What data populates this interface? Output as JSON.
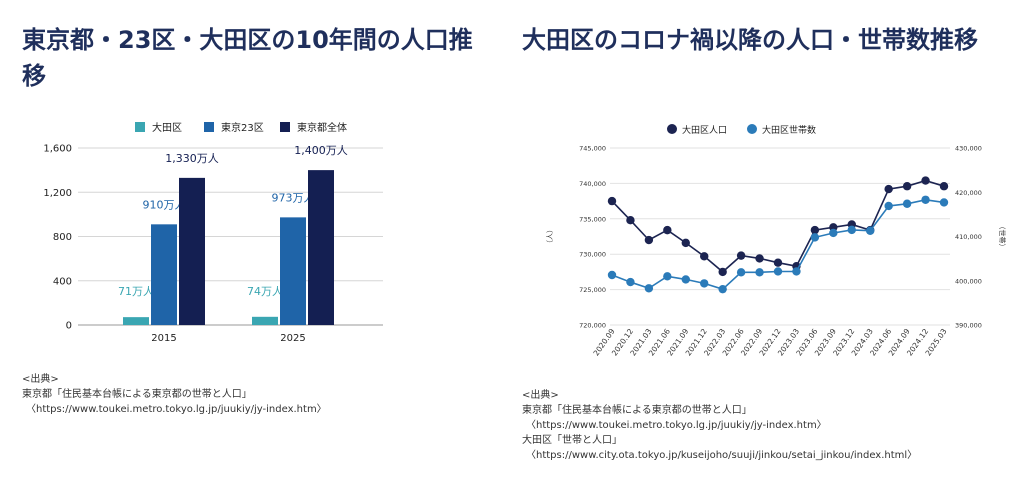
{
  "left": {
    "title": "東京都・23区・大田区の10年間の人口推移",
    "source_heading": "<出典>",
    "source_lines": [
      "東京都「住民基本台帳による東京都の世帯と人口」",
      "〈https://www.toukei.metro.tokyo.lg.jp/juukiy/jy-index.htm〉"
    ]
  },
  "right": {
    "title": "大田区のコロナ禍以降の人口・世帯数推移",
    "source_heading": "<出典>",
    "source_lines": [
      "東京都「住民基本台帳による東京都の世帯と人口」",
      "〈https://www.toukei.metro.tokyo.lg.jp/juukiy/jy-index.htm〉",
      "大田区「世帯と人口」",
      "〈https://www.city.ota.tokyo.jp/kuseijoho/suuji/jinkou/setai_jinkou/index.html〉"
    ]
  },
  "chart_data": [
    {
      "type": "bar",
      "categories": [
        "2015",
        "2025"
      ],
      "series": [
        {
          "name": "大田区",
          "color": "#3aa6b2",
          "values": [
            71,
            74
          ],
          "labels": [
            "71万人",
            "74万人"
          ]
        },
        {
          "name": "東京23区",
          "color": "#1f64a8",
          "values": [
            910,
            973
          ],
          "labels": [
            "910万人",
            "973万人"
          ]
        },
        {
          "name": "東京都全体",
          "color": "#141f52",
          "values": [
            1330,
            1400
          ],
          "labels": [
            "1,330万人",
            "1,400万人"
          ]
        }
      ],
      "ylim": [
        0,
        1600
      ],
      "yticks": [
        0,
        400,
        800,
        1200,
        1600
      ],
      "ytick_labels": [
        "0",
        "400",
        "800",
        "1,200",
        "1,600"
      ],
      "grid": true,
      "legend": "top"
    },
    {
      "type": "line",
      "x": [
        "2020.09",
        "2020.12",
        "2021.03",
        "2021.06",
        "2021.09",
        "2021.12",
        "2022.03",
        "2022.06",
        "2022.09",
        "2022.12",
        "2023.03",
        "2023.06",
        "2023.09",
        "2023.12",
        "2024.03",
        "2024.06",
        "2024.09",
        "2024.12",
        "2025.03"
      ],
      "series": [
        {
          "name": "大田区人口",
          "axis": "left",
          "color": "#1c2451",
          "values": [
            737500,
            734800,
            732000,
            733400,
            731600,
            729700,
            727500,
            729800,
            729400,
            728800,
            728300,
            733400,
            733800,
            734200,
            733400,
            739200,
            739600,
            740400,
            739600
          ]
        },
        {
          "name": "大田区世帯数",
          "axis": "right",
          "color": "#2b7bb9",
          "values": [
            401300,
            399700,
            398300,
            401000,
            400300,
            399400,
            398100,
            401900,
            401900,
            402100,
            402100,
            409800,
            410800,
            411500,
            411300,
            416900,
            417400,
            418300,
            417700
          ]
        }
      ],
      "ylabel_left": "（人）",
      "ylabel_right": "（世帯）",
      "ylim_left": [
        720000,
        745000
      ],
      "ylim_right": [
        390000,
        430000
      ],
      "yticks_left": [
        "720,000",
        "725,000",
        "730,000",
        "735,000",
        "740,000",
        "745,000"
      ],
      "yticks_right": [
        "390,000",
        "400,000",
        "410,000",
        "420,000",
        "430,000"
      ],
      "grid": true,
      "legend": "top"
    }
  ]
}
